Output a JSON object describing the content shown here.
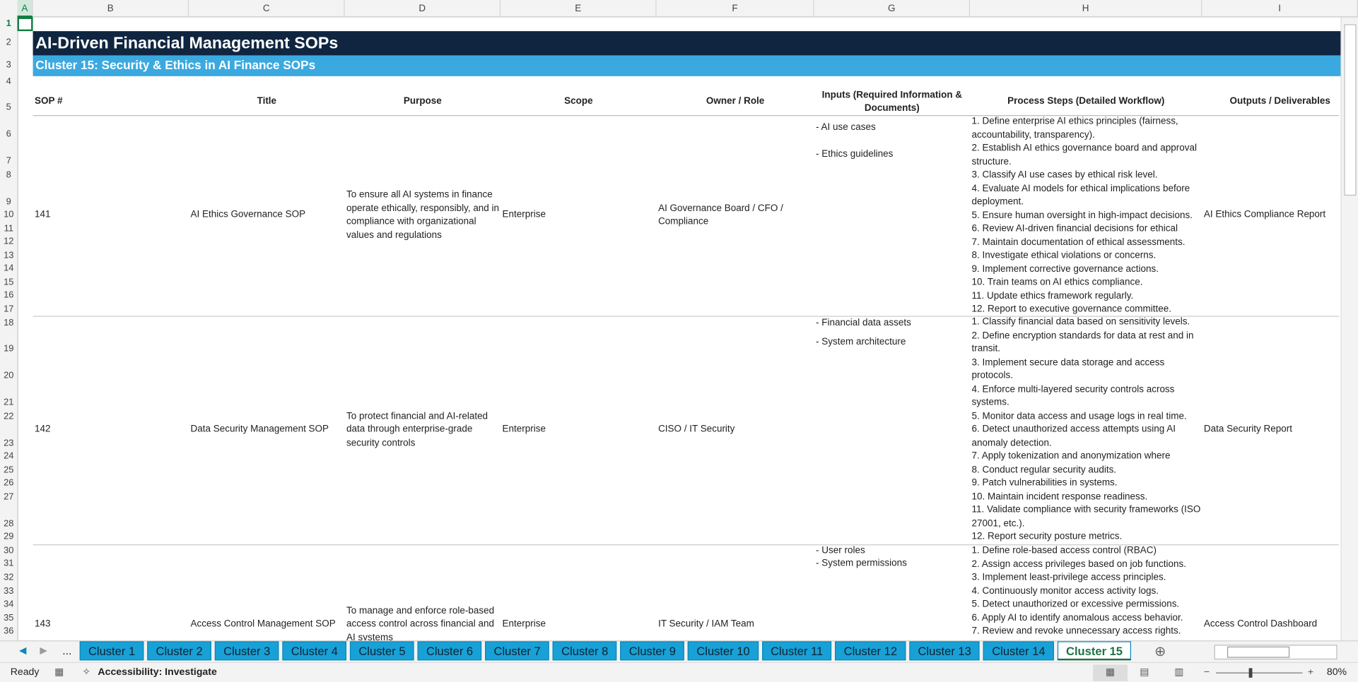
{
  "columns": [
    "A",
    "B",
    "C",
    "D",
    "E",
    "F",
    "G",
    "H",
    "I"
  ],
  "row_numbers": [
    1,
    2,
    3,
    4,
    5,
    6,
    7,
    8,
    9,
    10,
    11,
    12,
    13,
    14,
    15,
    16,
    17,
    18,
    19,
    20,
    21,
    22,
    23,
    24,
    25,
    26,
    27,
    28,
    29,
    30,
    31,
    32,
    33,
    34,
    35,
    36
  ],
  "header": {
    "title": "AI-Driven Financial Management SOPs",
    "subtitle": "Cluster 15: Security & Ethics in AI Finance SOPs"
  },
  "table": {
    "headers": [
      "SOP #",
      "Title",
      "Purpose",
      "Scope",
      "Owner / Role",
      "Inputs (Required Information & Documents)",
      "Process Steps (Detailed Workflow)",
      "Outputs / Deliverables"
    ],
    "rows": [
      {
        "sop": "141",
        "title": "AI Ethics Governance SOP",
        "purpose": "To ensure all AI systems in finance operate ethically, responsibly, and in compliance with organizational values and regulations",
        "scope": "Enterprise",
        "owner": "AI Governance Board / CFO / Compliance",
        "inputs": [
          "- AI use cases",
          "- Ethics guidelines"
        ],
        "steps": [
          "1. Define enterprise AI ethics principles (fairness, accountability, transparency).",
          "2. Establish AI ethics governance board and approval structure.",
          "3. Classify AI use cases by ethical risk level.",
          "4. Evaluate AI models for ethical implications before deployment.",
          "5. Ensure human oversight in high-impact decisions.",
          "6. Review AI-driven financial decisions for ethical",
          "7. Maintain documentation of ethical assessments.",
          "8. Investigate ethical violations or concerns.",
          "9. Implement corrective governance actions.",
          "10. Train teams on AI ethics compliance.",
          "11. Update ethics framework regularly.",
          "12. Report to executive governance committee."
        ],
        "outputs": "AI Ethics Compliance Report"
      },
      {
        "sop": "142",
        "title": "Data Security Management SOP",
        "purpose": "To protect financial and AI-related data through enterprise-grade security controls",
        "scope": "Enterprise",
        "owner": "CISO / IT Security",
        "inputs": [
          "- Financial data assets",
          "- System architecture"
        ],
        "steps": [
          "1. Classify financial data based on sensitivity levels.",
          "2. Define encryption standards for data at rest and in transit.",
          "3. Implement secure data storage and access protocols.",
          "4. Enforce multi-layered security controls across systems.",
          "5. Monitor data access and usage logs in real time.",
          "6. Detect unauthorized access attempts using AI anomaly detection.",
          "7. Apply tokenization and anonymization where",
          "8. Conduct regular security audits.",
          "9. Patch vulnerabilities in systems.",
          "10. Maintain incident response readiness.",
          "11. Validate compliance with security frameworks (ISO 27001, etc.).",
          "12. Report security posture metrics."
        ],
        "outputs": "Data Security Report"
      },
      {
        "sop": "143",
        "title": "Access Control Management SOP",
        "purpose": "To manage and enforce role-based access control across financial and AI systems",
        "scope": "Enterprise",
        "owner": "IT Security / IAM Team",
        "inputs": [
          "- User roles",
          "- System permissions"
        ],
        "steps": [
          "1. Define role-based access control (RBAC)",
          "2. Assign access privileges based on job functions.",
          "3. Implement least-privilege access principles.",
          "4. Continuously monitor access activity logs.",
          "5. Detect unauthorized or excessive permissions.",
          "6. Apply AI to identify anomalous access behavior.",
          "7. Review and revoke unnecessary access rights."
        ],
        "outputs": "Access Control Dashboard"
      }
    ]
  },
  "tabs": {
    "more": "...",
    "names": [
      "Cluster 1",
      "Cluster 2",
      "Cluster 3",
      "Cluster 4",
      "Cluster 5",
      "Cluster 6",
      "Cluster 7",
      "Cluster 8",
      "Cluster 9",
      "Cluster 10",
      "Cluster 11",
      "Cluster 12",
      "Cluster 13",
      "Cluster 14",
      "Cluster 15"
    ],
    "active": 14
  },
  "status": {
    "ready": "Ready",
    "accessibility": "Accessibility: Investigate",
    "zoom": "80%"
  }
}
